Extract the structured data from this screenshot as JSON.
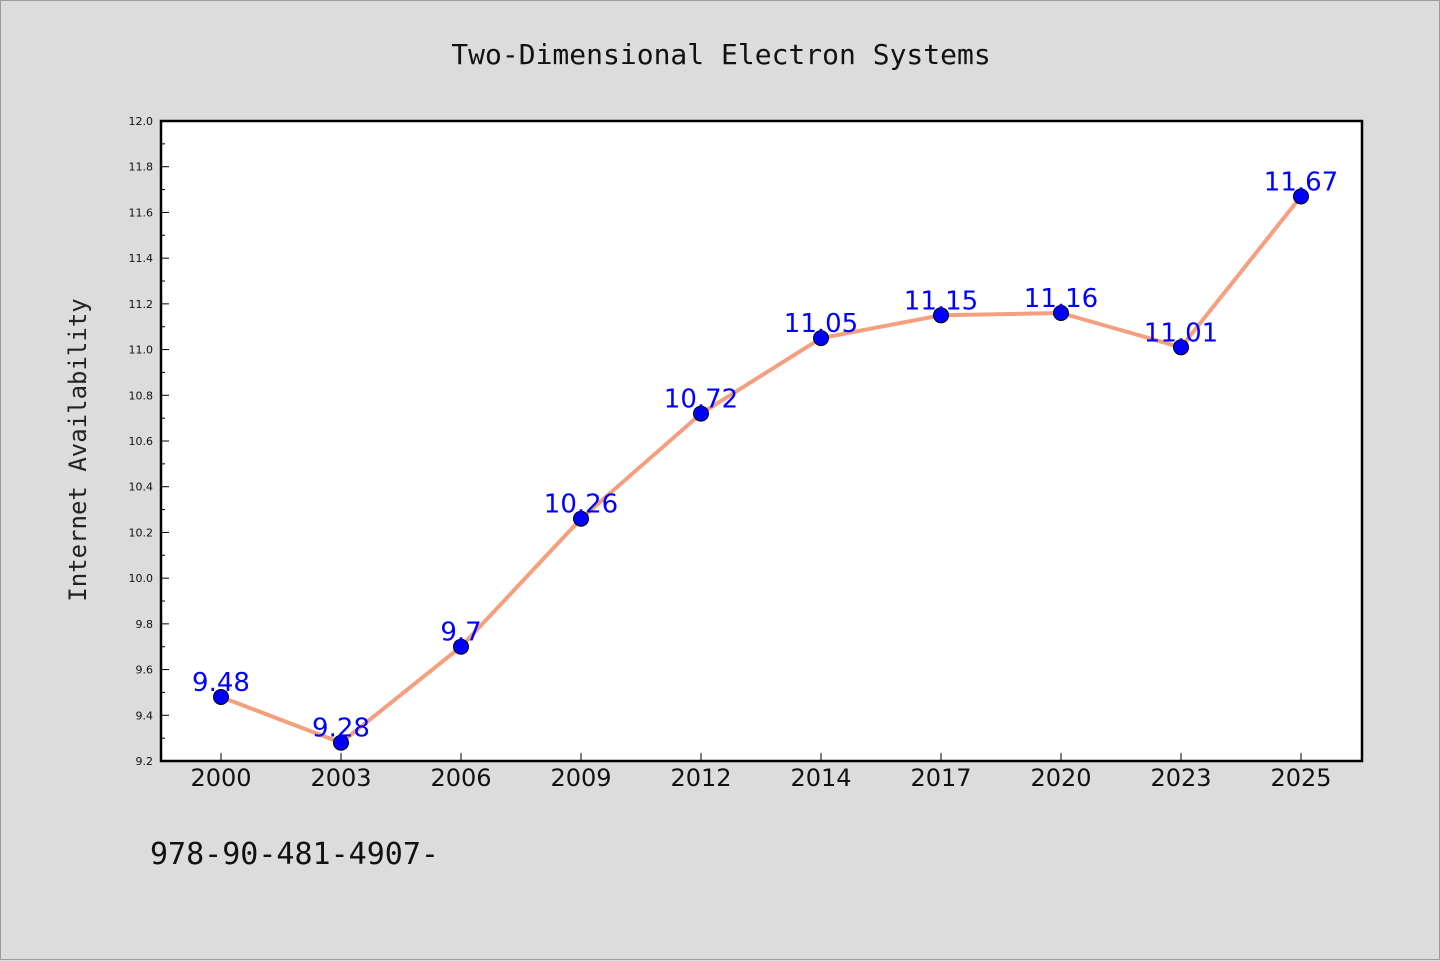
{
  "chart_data": {
    "type": "line",
    "title": "Two-Dimensional Electron Systems",
    "xlabel": "",
    "ylabel": "Internet Availability",
    "categories": [
      "2000",
      "2003",
      "2006",
      "2009",
      "2012",
      "2014",
      "2017",
      "2020",
      "2023",
      "2025"
    ],
    "series": [
      {
        "values": [
          9.48,
          9.28,
          9.7,
          10.26,
          10.72,
          11.05,
          11.15,
          11.16,
          11.01,
          11.67
        ],
        "data_labels": [
          "9.48",
          "9.28",
          "9.7",
          "10.26",
          "10.72",
          "11.05",
          "11.15",
          "11.16",
          "11.01",
          "11.67"
        ],
        "line_color": "#f4a07e",
        "marker_color": "#0000ff"
      }
    ],
    "ylim": [
      9.2,
      12.0
    ],
    "yticks": [
      "9.2",
      "9.4",
      "9.6",
      "9.8",
      "10.0",
      "10.2",
      "10.4",
      "10.6",
      "10.8",
      "11.0",
      "11.2",
      "11.4",
      "11.6",
      "11.8",
      "12.0"
    ],
    "grid": false,
    "legend": "none",
    "label_color": "#0000ff",
    "background": "#dcdcdc",
    "plot_background": "#ffffff"
  },
  "footer_text": "978-90-481-4907-"
}
